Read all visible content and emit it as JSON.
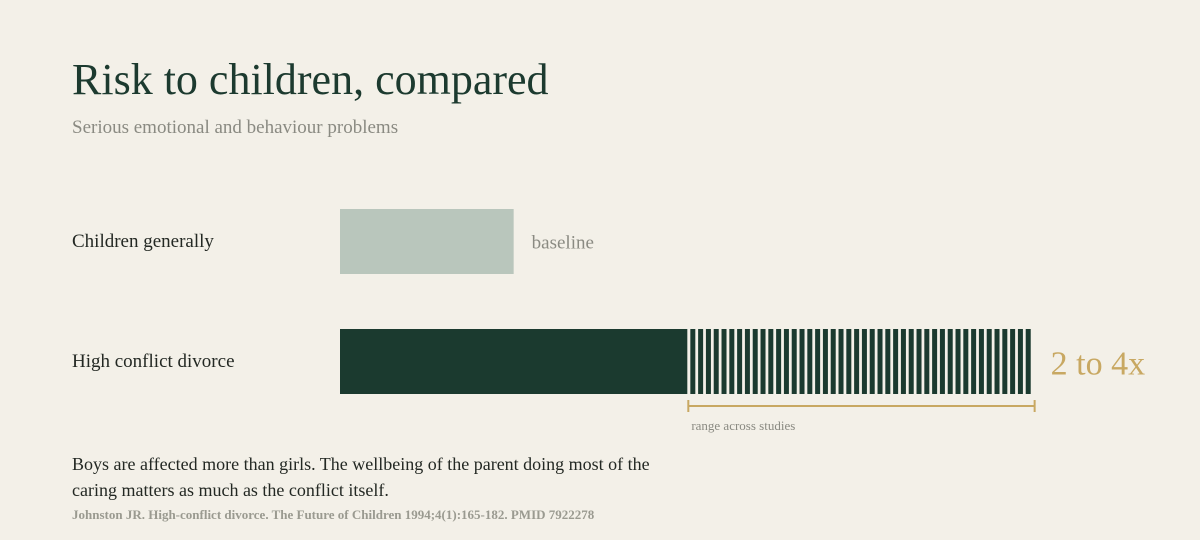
{
  "title": "Risk to children, compared",
  "subtitle": "Serious emotional and behaviour problems",
  "chart_data": {
    "type": "bar",
    "orientation": "horizontal",
    "categories": [
      "Children generally",
      "High conflict divorce"
    ],
    "series": [
      {
        "values": [
          1,
          2
        ],
        "range_upper": [
          null,
          4
        ]
      }
    ],
    "data_labels": [
      "baseline",
      "2 to 4x"
    ],
    "range_caption": "range across studies",
    "xlim": [
      0,
      4.1
    ],
    "grid": false,
    "axes_visible": false
  },
  "note": "Boys are affected more than girls. The wellbeing of the parent doing most of the caring matters as much as the conflict itself.",
  "source": "Johnston JR. High-conflict divorce. The Future of Children 1994;4(1):165-182. PMID 7922278",
  "colors": {
    "background": "#f3f0e8",
    "title": "#1c3a2f",
    "baseline_bar": "#b9c6bc",
    "divorce_bar": "#1b3a2f",
    "accent": "#c8a862",
    "muted_text": "#8a8a82"
  }
}
